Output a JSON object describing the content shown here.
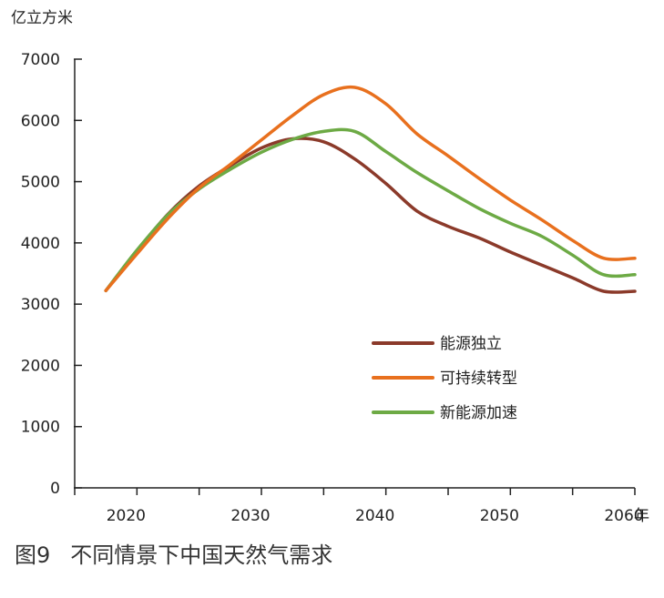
{
  "chart_data": {
    "type": "line",
    "title": "",
    "ylabel": "亿立方米",
    "xlabel": "年",
    "ylim": [
      0,
      7000
    ],
    "yticks": [
      0,
      1000,
      2000,
      3000,
      4000,
      5000,
      6000,
      7000
    ],
    "xlim": [
      2015,
      2060
    ],
    "xtick_labels": [
      "2020",
      "2030",
      "2040",
      "2050",
      "2060"
    ],
    "grid": false,
    "legend_position": "lower-right",
    "series": [
      {
        "name": "能源独立",
        "color": "#8B3A2A",
        "x": [
          2017.5,
          2020,
          2022.5,
          2025,
          2027.5,
          2030,
          2032.5,
          2035,
          2037.5,
          2040,
          2042.5,
          2045,
          2047.5,
          2050,
          2052.5,
          2055,
          2057.5,
          2060
        ],
        "y": [
          3220,
          3870,
          4470,
          4930,
          5260,
          5550,
          5700,
          5650,
          5370,
          4970,
          4520,
          4270,
          4080,
          3850,
          3640,
          3430,
          3210,
          3210
        ]
      },
      {
        "name": "可持续转型",
        "color": "#E8701E",
        "x": [
          2017.5,
          2020,
          2022.5,
          2025,
          2027.5,
          2030,
          2032.5,
          2035,
          2037.5,
          2040,
          2042.5,
          2045,
          2047.5,
          2050,
          2052.5,
          2055,
          2057.5,
          2060
        ],
        "y": [
          3220,
          3820,
          4400,
          4900,
          5280,
          5680,
          6080,
          6420,
          6540,
          6270,
          5780,
          5420,
          5050,
          4700,
          4380,
          4040,
          3750,
          3750
        ]
      },
      {
        "name": "新能源加速",
        "color": "#6DAA45",
        "x": [
          2017.5,
          2020,
          2022.5,
          2025,
          2027.5,
          2030,
          2032.5,
          2035,
          2037.5,
          2040,
          2042.5,
          2045,
          2047.5,
          2050,
          2052.5,
          2055,
          2057.5,
          2060
        ],
        "y": [
          3220,
          3880,
          4460,
          4880,
          5200,
          5480,
          5690,
          5820,
          5820,
          5490,
          5150,
          4850,
          4560,
          4320,
          4110,
          3800,
          3480,
          3480
        ]
      }
    ]
  },
  "caption": {
    "number": "图9",
    "text": "不同情景下中国天然气需求"
  }
}
